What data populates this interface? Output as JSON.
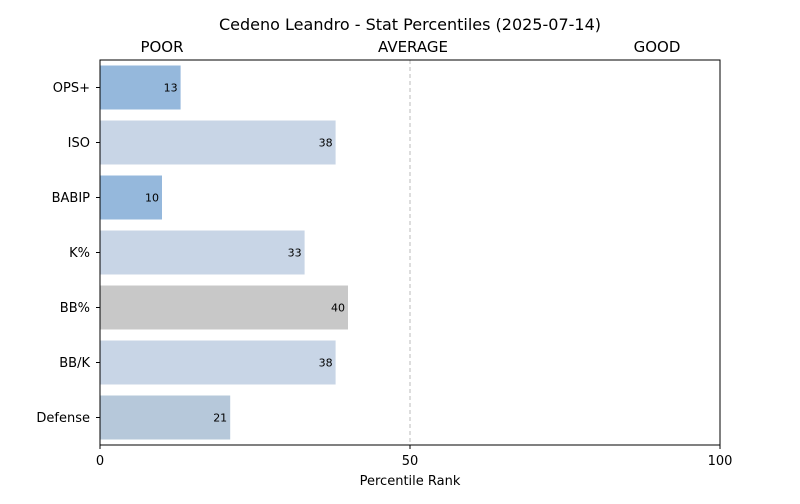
{
  "chart_data": {
    "type": "bar",
    "orientation": "horizontal",
    "title": "Cedeno Leandro - Stat Percentiles (2025-07-14)",
    "xlabel": "Percentile Rank",
    "ylabel": "",
    "xlim": [
      0,
      100
    ],
    "xticks": [
      0,
      50,
      100
    ],
    "zone_labels": [
      "POOR",
      "AVERAGE",
      "GOOD"
    ],
    "reference_line": {
      "x": 50,
      "style": "dashed"
    },
    "grid": false,
    "categories": [
      "OPS+",
      "ISO",
      "BABIP",
      "K%",
      "BB%",
      "BB/K",
      "Defense"
    ],
    "values": [
      13,
      38,
      10,
      33,
      40,
      38,
      21
    ],
    "bar_colors": [
      "#95b8dc",
      "#c8d5e6",
      "#95b8dc",
      "#c8d5e6",
      "#c8c8c8",
      "#c8d5e6",
      "#b6c8da"
    ]
  }
}
